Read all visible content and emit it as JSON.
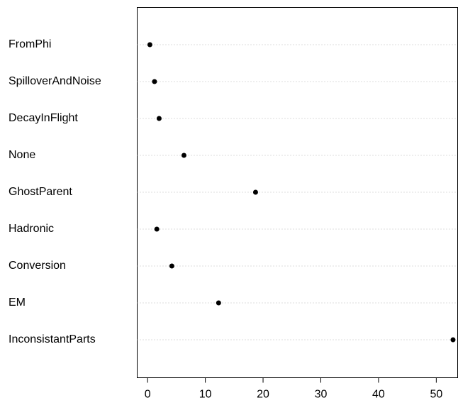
{
  "chart_data": {
    "type": "dot",
    "categories": [
      "FromPhi",
      "SpilloverAndNoise",
      "DecayInFlight",
      "None",
      "GhostParent",
      "Hadronic",
      "Conversion",
      "EM",
      "InconsistantParts"
    ],
    "values": [
      0.4,
      1.2,
      2.0,
      6.3,
      18.7,
      1.6,
      4.2,
      12.3,
      52.9
    ],
    "color": "#000000",
    "xlim": [
      -1.8,
      53.7
    ],
    "xticks": [
      0,
      10,
      20,
      30,
      40,
      50
    ]
  }
}
